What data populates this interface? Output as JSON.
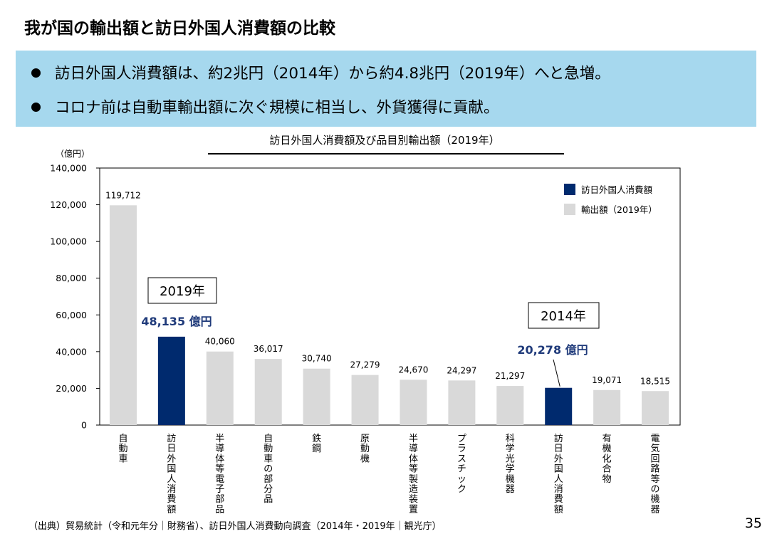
{
  "slide": {
    "title": "我が国の輸出額と訪日外国人消費額の比較",
    "bullets": [
      "訪日外国人消費額は、約2兆円（2014年）から約4.8兆円（2019年）へと急増。",
      "コロナ前は自動車輸出額に次ぐ規模に相当し、外貨獲得に貢献。"
    ],
    "source": "（出典）貿易統計（令和元年分｜財務省）、訪日外国人消費動向調査（2014年・2019年｜観光庁）",
    "page_number": "35"
  },
  "chart_data": {
    "type": "bar",
    "title": "訪日外国人消費額及び品目別輸出額（2019年）",
    "unit_label": "（億円）",
    "ylim": [
      0,
      140000
    ],
    "yticks": [
      0,
      20000,
      40000,
      60000,
      80000,
      100000,
      120000,
      140000
    ],
    "ytick_labels": [
      "0",
      "20,000",
      "40,000",
      "60,000",
      "80,000",
      "100,000",
      "120,000",
      "140,000"
    ],
    "categories": [
      "自動車",
      "訪日外国人消費額",
      "半導体等電子部品",
      "自動車の部分品",
      "鉄鋼",
      "原動機",
      "半導体等製造装置",
      "プラスチック",
      "科学光学機器",
      "訪日外国人消費額",
      "有機化合物",
      "電気回路等の機器"
    ],
    "values": [
      119712,
      48135,
      40060,
      36017,
      30740,
      27279,
      24670,
      24297,
      21297,
      20278,
      19071,
      18515
    ],
    "value_labels": [
      "119,712",
      "",
      "40,060",
      "36,017",
      "30,740",
      "27,279",
      "24,670",
      "24,297",
      "21,297",
      "",
      "19,071",
      "18,515"
    ],
    "series_index": [
      1,
      0,
      1,
      1,
      1,
      1,
      1,
      1,
      1,
      0,
      1,
      1
    ],
    "legend": [
      {
        "name": "訪日外国人消費額",
        "color": "#002a6e"
      },
      {
        "name": "輸出額（2019年）",
        "color": "#d9d9d9"
      }
    ],
    "legend_position": "top-right",
    "grid": false,
    "annotations": {
      "box_2019": "2019年",
      "box_2014": "2014年",
      "highlight_2019": "48,135 億円",
      "highlight_2014": "20,278 億円"
    },
    "colors": {
      "highlight": "#002a6e",
      "export": "#d9d9d9",
      "highlight_text": "#1f3a7a"
    }
  }
}
